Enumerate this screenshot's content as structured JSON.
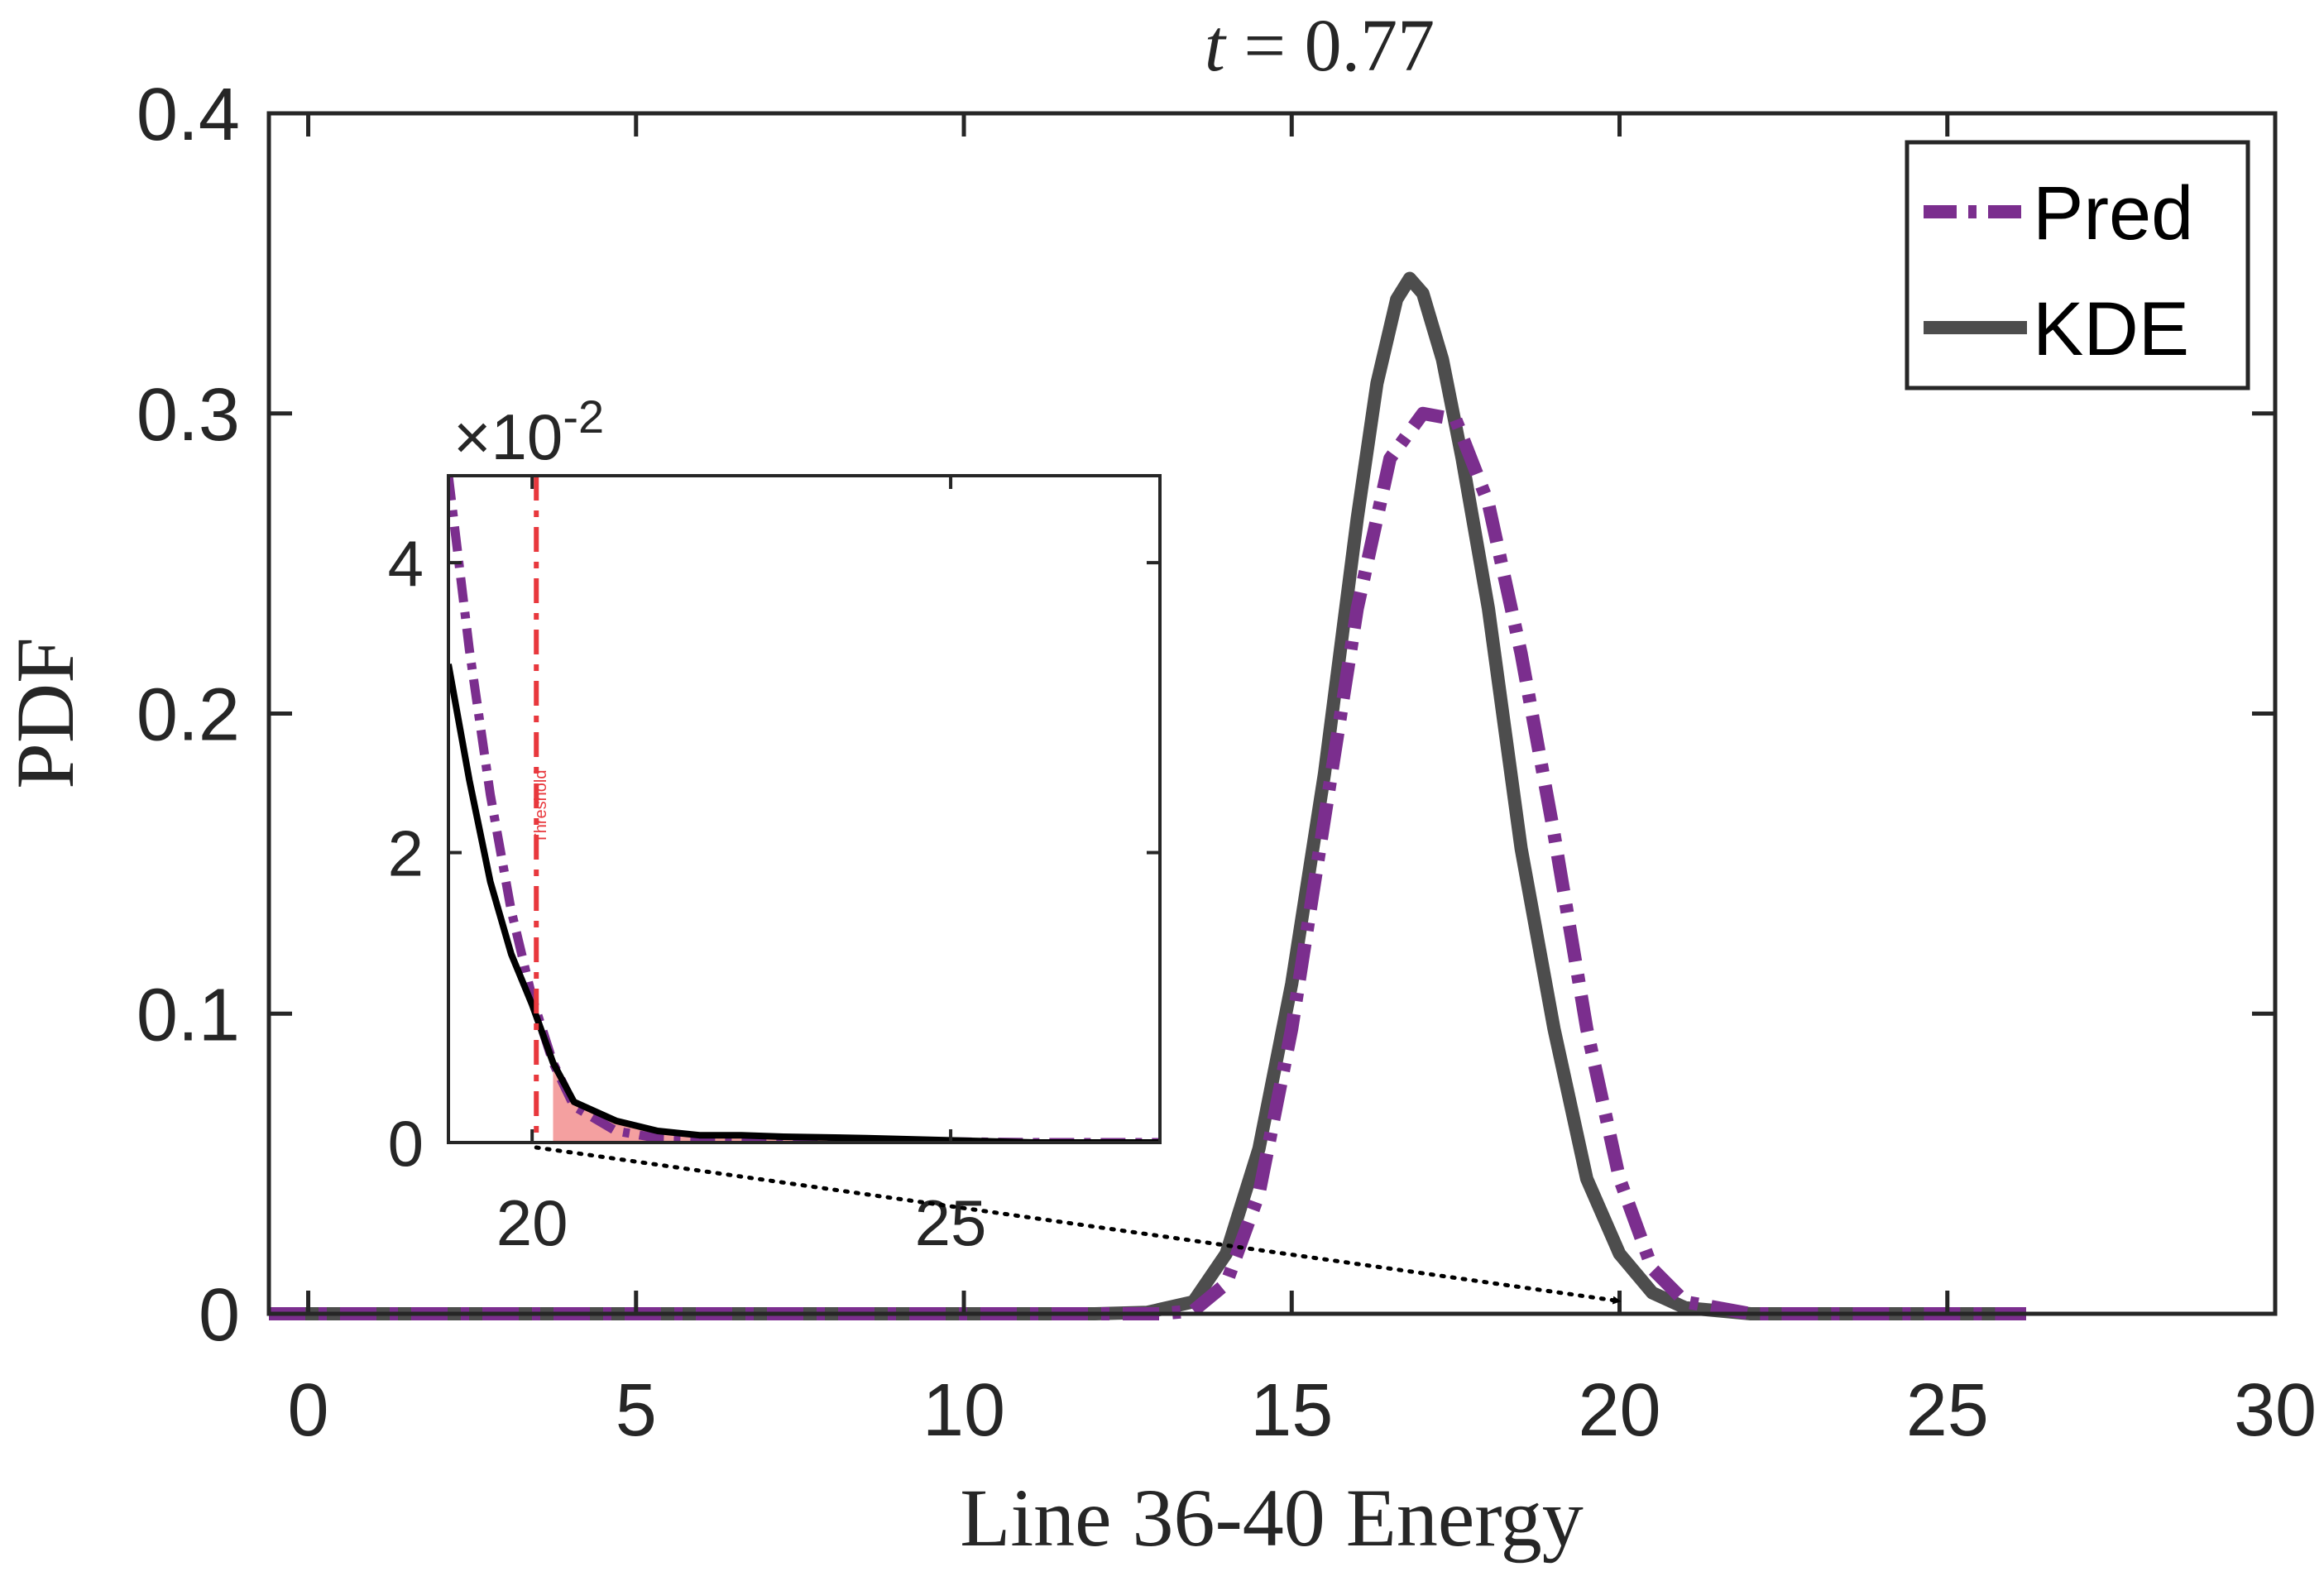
{
  "chart_data": {
    "type": "line",
    "title": "t = 0.77",
    "title_parts": {
      "var": "t",
      "eq": " = 0.77"
    },
    "xlabel": "Line 36-40 Energy",
    "ylabel": "PDF",
    "xlim": [
      -0.6,
      30
    ],
    "ylim": [
      0,
      0.4
    ],
    "xticks": [
      0,
      5,
      10,
      15,
      20,
      25,
      30
    ],
    "xtick_labels": [
      "0",
      "5",
      "10",
      "15",
      "20",
      "25",
      "30"
    ],
    "yticks": [
      0,
      0.1,
      0.2,
      0.3,
      0.4
    ],
    "ytick_labels": [
      "0",
      "0.1",
      "0.2",
      "0.3",
      "0.4"
    ],
    "legend": {
      "position": "top-right",
      "entries": [
        "Pred",
        "KDE"
      ]
    },
    "series": [
      {
        "name": "Pred",
        "color": "#7B2E8E",
        "style": "dashdot",
        "x": [
          -0.6,
          10,
          12,
          13,
          13.5,
          14,
          14.5,
          15,
          15.5,
          16,
          16.5,
          17,
          17.5,
          18,
          18.5,
          19,
          19.5,
          20,
          20.5,
          21,
          22,
          24,
          26.2
        ],
        "y": [
          0,
          0,
          0,
          0,
          0.001,
          0.01,
          0.04,
          0.095,
          0.165,
          0.235,
          0.285,
          0.3,
          0.298,
          0.27,
          0.22,
          0.16,
          0.095,
          0.045,
          0.015,
          0.004,
          0,
          0,
          0
        ]
      },
      {
        "name": "KDE",
        "color": "#4D4D4D",
        "style": "solid",
        "x": [
          -0.6,
          10,
          12,
          12.8,
          13.5,
          14,
          14.5,
          15,
          15.5,
          16,
          16.3,
          16.6,
          16.8,
          17,
          17.3,
          17.6,
          18,
          18.5,
          19,
          19.5,
          20,
          20.5,
          21,
          22,
          24,
          26.2
        ],
        "y": [
          0,
          0,
          0,
          0.0005,
          0.004,
          0.02,
          0.055,
          0.11,
          0.18,
          0.265,
          0.31,
          0.338,
          0.345,
          0.34,
          0.318,
          0.285,
          0.235,
          0.155,
          0.095,
          0.045,
          0.02,
          0.007,
          0.002,
          0,
          0,
          0
        ]
      }
    ],
    "inset": {
      "xlim": [
        19,
        27.5
      ],
      "ylim": [
        0,
        4.6
      ],
      "exponent_label": "×10",
      "exponent_power": "-2",
      "xticks": [
        20,
        25
      ],
      "xtick_labels": [
        "20",
        "25"
      ],
      "yticks": [
        0,
        2,
        4
      ],
      "ytick_labels": [
        "0",
        "2",
        "4"
      ],
      "threshold": {
        "x": 20.05,
        "label": "Threshold",
        "color": "#E8383D"
      },
      "shade_color": "#F4A0A0",
      "series": [
        {
          "name": "Pred",
          "color": "#7B2E8E",
          "style": "dashdot",
          "x": [
            19,
            19.25,
            19.5,
            19.75,
            20,
            20.25,
            20.5,
            21,
            21.5,
            22,
            22.5,
            23,
            24,
            25,
            26,
            27.5
          ],
          "y": [
            4.6,
            3.4,
            2.4,
            1.6,
            1.0,
            0.55,
            0.25,
            0.08,
            0.03,
            0.02,
            0.02,
            0.015,
            0.01,
            0.005,
            0,
            0
          ]
        },
        {
          "name": "KDE",
          "color": "#000000",
          "style": "solid",
          "x": [
            19,
            19.25,
            19.5,
            19.75,
            20,
            20.25,
            20.5,
            21,
            21.5,
            22,
            22.5,
            23,
            24,
            25,
            26,
            27.5
          ],
          "y": [
            3.3,
            2.5,
            1.8,
            1.3,
            0.95,
            0.55,
            0.28,
            0.15,
            0.08,
            0.05,
            0.05,
            0.04,
            0.03,
            0.015,
            0,
            0
          ]
        }
      ]
    },
    "annotation": {
      "type": "arrow",
      "style": "dotted",
      "from": "inset threshold",
      "to_data": [
        20,
        0.002
      ]
    }
  }
}
